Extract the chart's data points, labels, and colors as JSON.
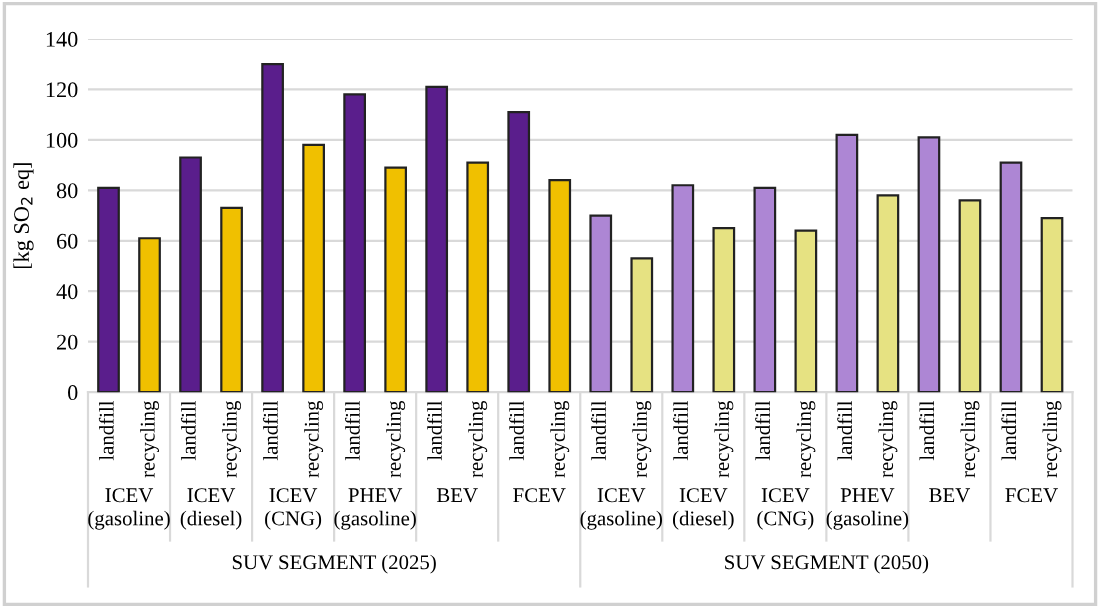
{
  "chart_data": {
    "type": "bar",
    "ylabel": "[kg SO$_{2}$ eq]",
    "categories": [
      "landfill",
      "recycling",
      "landfill",
      "recycling",
      "landfill",
      "recycling",
      "landfill",
      "recycling",
      "landfill",
      "recycling",
      "landfill",
      "recycling",
      "landfill",
      "recycling",
      "landfill",
      "recycling",
      "landfill",
      "recycling",
      "landfill",
      "recycling",
      "landfill",
      "recycling",
      "landfill",
      "recycling"
    ],
    "values": [
      81,
      61,
      93,
      73,
      130,
      98,
      118,
      89,
      121,
      91,
      111,
      84,
      70,
      53,
      82,
      65,
      81,
      64,
      102,
      78,
      101,
      76,
      91,
      69
    ],
    "colors": [
      "#5a1e8c",
      "#f0c000",
      "#5a1e8c",
      "#f0c000",
      "#5a1e8c",
      "#f0c000",
      "#5a1e8c",
      "#f0c000",
      "#5a1e8c",
      "#f0c000",
      "#5a1e8c",
      "#f0c000",
      "#ad86d4",
      "#e6e282",
      "#ad86d4",
      "#e6e282",
      "#ad86d4",
      "#e6e282",
      "#ad86d4",
      "#e6e282",
      "#ad86d4",
      "#e6e282",
      "#ad86d4",
      "#e6e282"
    ],
    "ylim": [
      0,
      140
    ],
    "yticks": [
      0,
      20,
      40,
      60,
      80,
      100,
      120,
      140
    ],
    "grid": "y",
    "annotations": [
      "ICEV\n(gasoline)",
      "ICEV\n(diesel)",
      "ICEV\n(CNG)",
      "PHEV\n(gasoline)",
      "BEV",
      "FCEV",
      "ICEV\n(gasoline)",
      "ICEV\n(diesel)",
      "ICEV\n(CNG)",
      "PHEV\n(gasoline)",
      "BEV",
      "FCEV",
      "SUV SEGMENT (2025)",
      "SUV SEGMENT (2050)"
    ]
  }
}
